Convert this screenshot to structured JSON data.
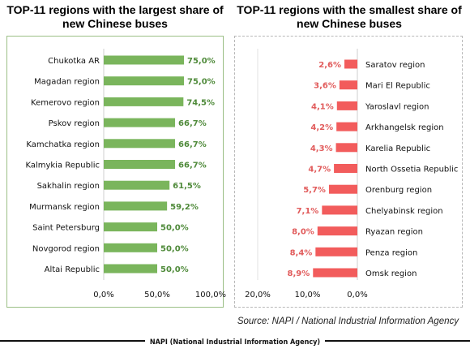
{
  "chart_data": [
    {
      "type": "bar",
      "orientation": "horizontal",
      "title": "TOP-11 regions with the largest share of new Chinese buses",
      "categories": [
        "Chukotka AR",
        "Magadan region",
        "Kemerovo region",
        "Pskov region",
        "Kamchatka region",
        "Kalmykia Republic",
        "Sakhalin region",
        "Murmansk region",
        "Saint Petersburg",
        "Novgorod region",
        "Altai Republic"
      ],
      "values": [
        75.0,
        75.0,
        74.5,
        66.7,
        66.7,
        66.7,
        61.5,
        59.2,
        50.0,
        50.0,
        50.0
      ],
      "value_labels": [
        "75,0%",
        "75,0%",
        "74,5%",
        "66,7%",
        "66,7%",
        "66,7%",
        "61,5%",
        "59,2%",
        "50,0%",
        "50,0%",
        "50,0%"
      ],
      "xlim": [
        0,
        100
      ],
      "ticks": [
        "0,0%",
        "50,0%",
        "100,0%"
      ],
      "bar_color": "#7ab55c",
      "label_color": "#4f8a3a"
    },
    {
      "type": "bar",
      "orientation": "horizontal",
      "reversed_axis": true,
      "title": "TOP-11 regions with the smallest share of new Chinese buses",
      "categories": [
        "Saratov region",
        "Mari El Republic",
        "Yaroslavl region",
        "Arkhangelsk region",
        "Karelia Republic",
        "North Ossetia Republic",
        "Orenburg region",
        "Chelyabinsk region",
        "Ryazan region",
        "Penza region",
        "Omsk region"
      ],
      "values": [
        2.6,
        3.6,
        4.1,
        4.2,
        4.3,
        4.7,
        5.7,
        7.1,
        8.0,
        8.4,
        8.9
      ],
      "value_labels": [
        "2,6%",
        "3,6%",
        "4,1%",
        "4,2%",
        "4,3%",
        "4,7%",
        "5,7%",
        "7,1%",
        "8,0%",
        "8,4%",
        "8,9%"
      ],
      "xlim": [
        0,
        20
      ],
      "ticks": [
        "20,0%",
        "10,0%",
        "0,0%"
      ],
      "bar_color": "#f25c5c",
      "label_color": "#e15b5b"
    }
  ],
  "source": "Source: NAPI / National Industrial Information Agency",
  "footer": "NAPI (National Industrial Information Agency)"
}
